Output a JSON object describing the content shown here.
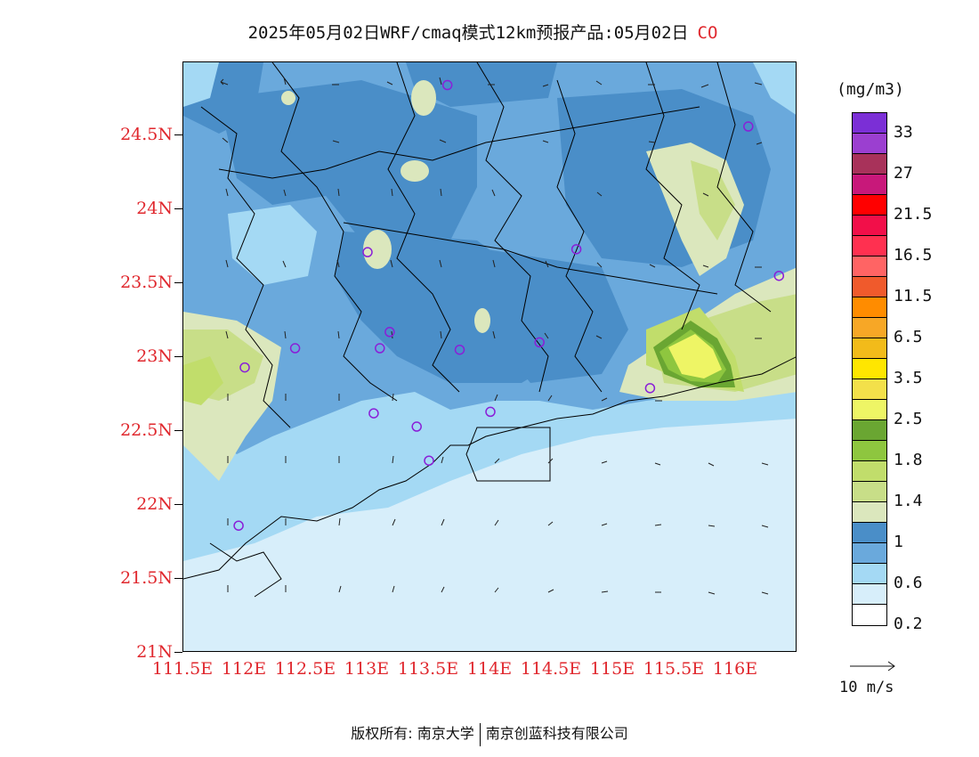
{
  "title": {
    "main": "2025年05月02日WRF/cmaq模式12km预报产品:05月02日",
    "species": "CO"
  },
  "axes": {
    "latitudes": [
      "24.5N",
      "24N",
      "23.5N",
      "23N",
      "22.5N",
      "22N",
      "21.5N",
      "21N"
    ],
    "longitudes": [
      "111.5E",
      "112E",
      "112.5E",
      "113E",
      "113.5E",
      "114E",
      "114.5E",
      "115E",
      "115.5E",
      "116E"
    ]
  },
  "colorbar": {
    "unit": "(mg/m3)",
    "colors": [
      "#7b2fd6",
      "#9b3fd0",
      "#a8325a",
      "#c8187a",
      "#ff0000",
      "#f20f49",
      "#ff3050",
      "#ff6464",
      "#f05a2c",
      "#ff8c00",
      "#f7a726",
      "#f2bb1a",
      "#ffe600",
      "#f3e04a",
      "#eef565",
      "#6aa632",
      "#8ec63f",
      "#c1dd6b",
      "#c8de88",
      "#dbe7bd",
      "#4a8ec8",
      "#6aa9dc",
      "#a4d9f4",
      "#d7eefa",
      "#ffffff"
    ],
    "labels": [
      "33",
      "27",
      "21.5",
      "16.5",
      "11.5",
      "6.5",
      "3.5",
      "2.5",
      "1.8",
      "1.4",
      "1",
      "0.6",
      "0.2"
    ]
  },
  "wind_reference": {
    "label": "10 m/s"
  },
  "stations": [
    {
      "lon": 113.65,
      "lat": 24.84
    },
    {
      "lon": 116.1,
      "lat": 24.56
    },
    {
      "lon": 113.0,
      "lat": 23.71
    },
    {
      "lon": 114.7,
      "lat": 23.73
    },
    {
      "lon": 116.35,
      "lat": 23.55
    },
    {
      "lon": 112.41,
      "lat": 23.06
    },
    {
      "lon": 113.1,
      "lat": 23.06
    },
    {
      "lon": 113.18,
      "lat": 23.17
    },
    {
      "lon": 113.75,
      "lat": 23.05
    },
    {
      "lon": 114.4,
      "lat": 23.1
    },
    {
      "lon": 112.0,
      "lat": 22.93
    },
    {
      "lon": 115.3,
      "lat": 22.79
    },
    {
      "lon": 114.0,
      "lat": 22.63
    },
    {
      "lon": 113.05,
      "lat": 22.62
    },
    {
      "lon": 113.4,
      "lat": 22.53
    },
    {
      "lon": 113.5,
      "lat": 22.3
    },
    {
      "lon": 111.95,
      "lat": 21.86
    }
  ],
  "credit": {
    "left": "版权所有: 南京大学",
    "right": "南京创蓝科技有限公司"
  }
}
